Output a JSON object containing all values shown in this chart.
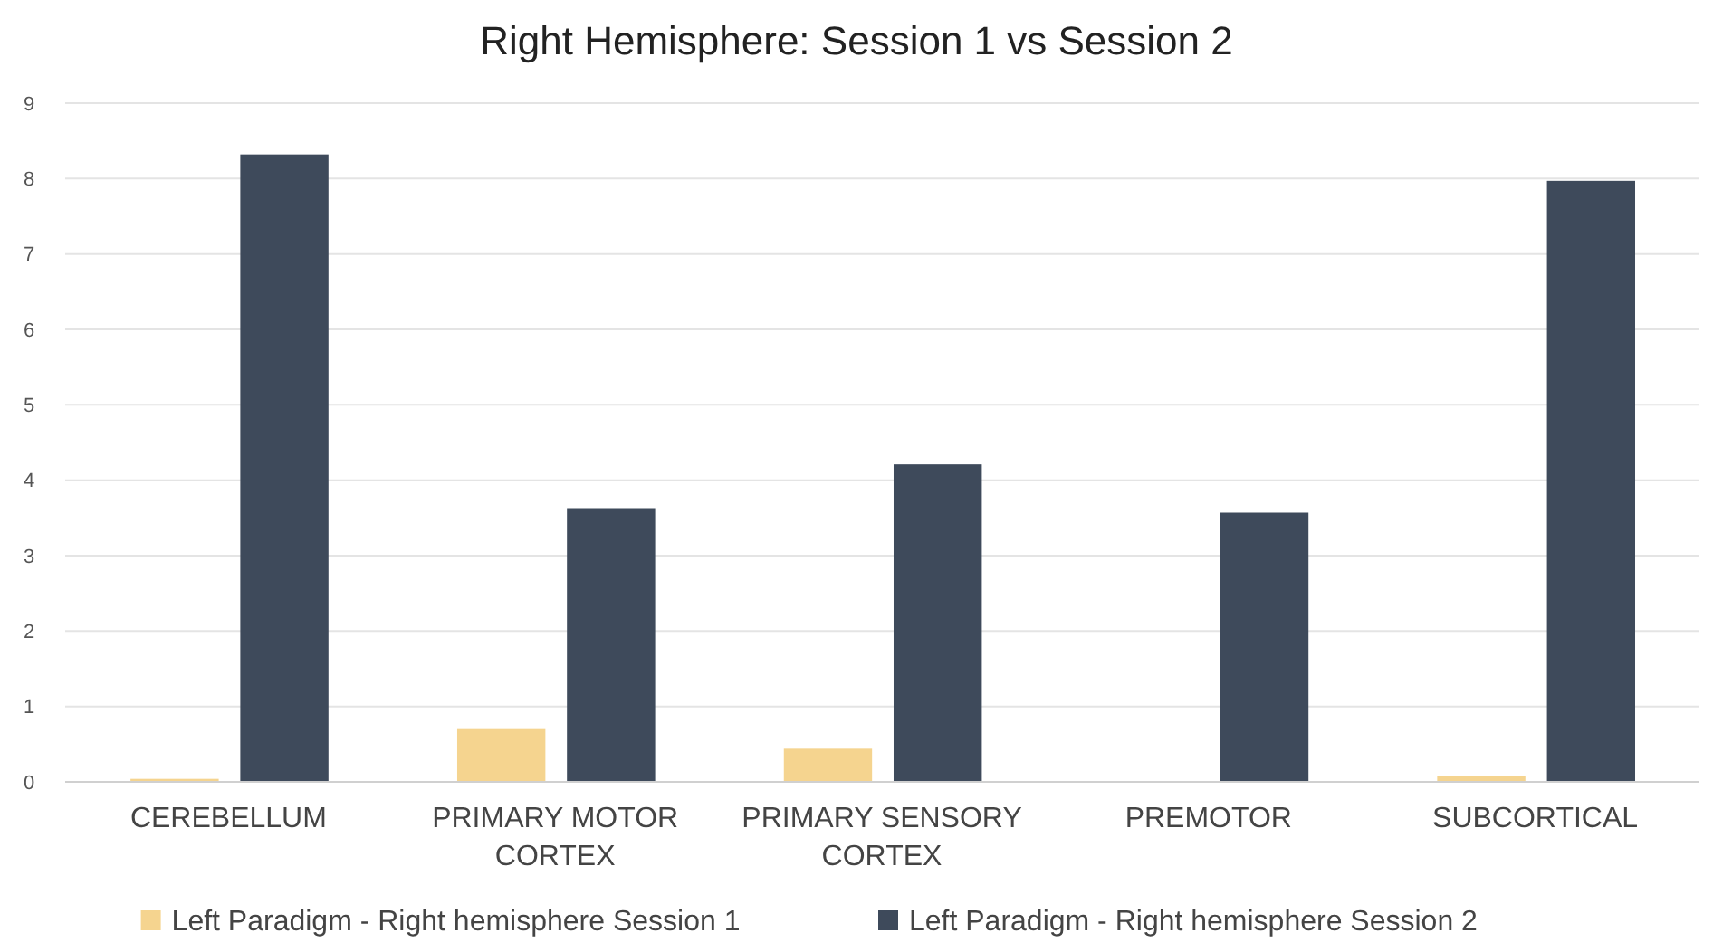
{
  "chart_data": {
    "type": "bar",
    "title": "Right Hemisphere: Session 1 vs Session 2",
    "categories": [
      "CEREBELLUM",
      "PRIMARY MOTOR CORTEX",
      "PRIMARY SENSORY CORTEX",
      "PREMOTOR",
      "SUBCORTICAL"
    ],
    "series": [
      {
        "name": "Left Paradigm - Right hemisphere Session 1",
        "color": "#f5d48f",
        "values": [
          0.04,
          0.7,
          0.44,
          0,
          0.08
        ]
      },
      {
        "name": "Left Paradigm - Right hemisphere Session 2",
        "color": "#3e4a5b",
        "values": [
          8.32,
          3.63,
          4.21,
          3.57,
          7.97
        ]
      }
    ],
    "ylim": [
      0,
      9
    ],
    "yticks": [
      0,
      1,
      2,
      3,
      4,
      5,
      6,
      7,
      8,
      9
    ],
    "grid": "y",
    "legend": "bottom"
  }
}
